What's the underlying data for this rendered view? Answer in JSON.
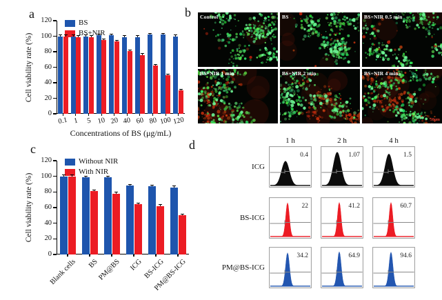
{
  "panel_labels": {
    "a": "a",
    "b": "b",
    "c": "c",
    "d": "d"
  },
  "panel_b": {
    "images": [
      {
        "label": "Control",
        "red_level": 0.03
      },
      {
        "label": "BS",
        "red_level": 0.1
      },
      {
        "label": "BS+NIR 0.5 min",
        "red_level": 0.07
      },
      {
        "label": "BS+NIR 1 min",
        "red_level": 0.5
      },
      {
        "label": "BS+NIR 2 min",
        "red_level": 0.58
      },
      {
        "label": "BS+NIR 4 min",
        "red_level": 0.68
      }
    ],
    "scale_bar": "50μm"
  },
  "chart_data": [
    {
      "type": "bar",
      "panel": "a",
      "categories": [
        "0.1",
        "1",
        "5",
        "10",
        "20",
        "40",
        "60",
        "80",
        "100",
        "120"
      ],
      "series": [
        {
          "name": "BS",
          "color": "#1E55AD",
          "values": [
            100,
            100,
            100,
            101,
            101,
            99,
            99,
            102,
            102,
            100
          ]
        },
        {
          "name": "BS+NIR",
          "color": "#EC1C24",
          "values": [
            100,
            99,
            99,
            95,
            93,
            81,
            76,
            62,
            50,
            30
          ]
        }
      ],
      "xlabel": "Concentrations of BS (μg/mL)",
      "ylabel": "Cell viability rate (%)",
      "ylim": [
        0,
        120
      ],
      "yticks": [
        0,
        20,
        40,
        60,
        80,
        100,
        120
      ],
      "legend_position": "top-left",
      "grid": false
    },
    {
      "type": "bar",
      "panel": "c",
      "categories": [
        "Blank cells",
        "BS",
        "PM@BS",
        "ICG",
        "BS-ICG",
        "PM@BS-ICG"
      ],
      "series": [
        {
          "name": "Without NIR",
          "color": "#1E55AD",
          "values": [
            100,
            99,
            99,
            88,
            87,
            86
          ]
        },
        {
          "name": "With NIR",
          "color": "#EC1C24",
          "values": [
            100,
            81,
            78,
            64,
            62,
            50
          ]
        }
      ],
      "xlabel": "",
      "ylabel": "Cell viability rate (%)",
      "ylim": [
        0,
        120
      ],
      "yticks": [
        0,
        20,
        40,
        60,
        80,
        100,
        120
      ],
      "legend_position": "top-left",
      "grid": false
    },
    {
      "type": "histogram-grid",
      "panel": "d",
      "columns": [
        "1 h",
        "2 h",
        "4 h"
      ],
      "rows": [
        {
          "name": "ICG",
          "color": "#0c0c0c",
          "values": [
            0.4,
            1.07,
            1.5
          ],
          "peak_heights": [
            0.68,
            0.93,
            0.88
          ],
          "sigma": 5.6
        },
        {
          "name": "BS-ICG",
          "color": "#EC1C24",
          "values": [
            22,
            41.2,
            60.7
          ],
          "peak_heights": [
            0.94,
            0.95,
            0.95
          ],
          "sigma": 2.6
        },
        {
          "name": "PM@BS-ICG",
          "color": "#2356B0",
          "values": [
            34.2,
            64.9,
            94.6
          ],
          "peak_heights": [
            0.93,
            0.96,
            0.95
          ],
          "sigma": 2.8
        }
      ]
    }
  ]
}
